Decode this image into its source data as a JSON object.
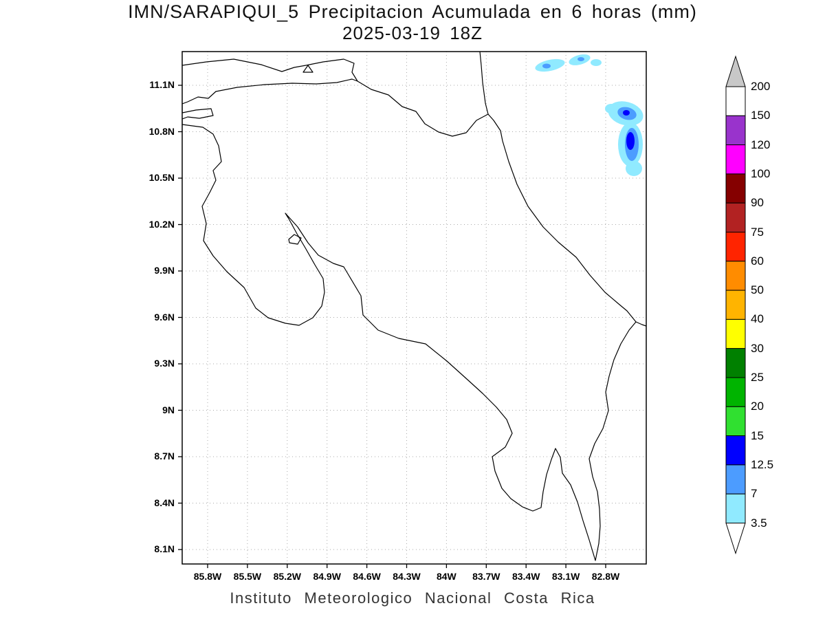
{
  "title": {
    "line1": "IMN/SARAPIQUI_5 Precipitacion Acumulada en 6 horas (mm)",
    "line2": "2025-03-19 18Z"
  },
  "caption": "Instituto Meteorologico Nacional Costa Rica",
  "map": {
    "x_ticks": [
      "85.8W",
      "85.5W",
      "85.2W",
      "84.9W",
      "84.6W",
      "84.3W",
      "84W",
      "83.7W",
      "83.4W",
      "83.1W",
      "82.8W"
    ],
    "y_ticks": [
      "11.1N",
      "10.8N",
      "10.5N",
      "10.2N",
      "9.9N",
      "9.6N",
      "9.3N",
      "9N",
      "8.7N",
      "8.4N",
      "8.1N"
    ]
  },
  "colorbar": {
    "labels": [
      "200",
      "150",
      "120",
      "100",
      "90",
      "75",
      "60",
      "50",
      "40",
      "30",
      "25",
      "20",
      "15",
      "12.5",
      "7",
      "3.5"
    ],
    "colors_top_to_bottom": [
      "#c8c8c8",
      "#ffffff",
      "#9933cc",
      "#ff00ff",
      "#850000",
      "#b22222",
      "#ff2400",
      "#ff8c00",
      "#ffb400",
      "#ffff00",
      "#008000",
      "#00b400",
      "#30e030",
      "#0000ff",
      "#4c9cff",
      "#90eaff",
      "#ffffff"
    ]
  }
}
